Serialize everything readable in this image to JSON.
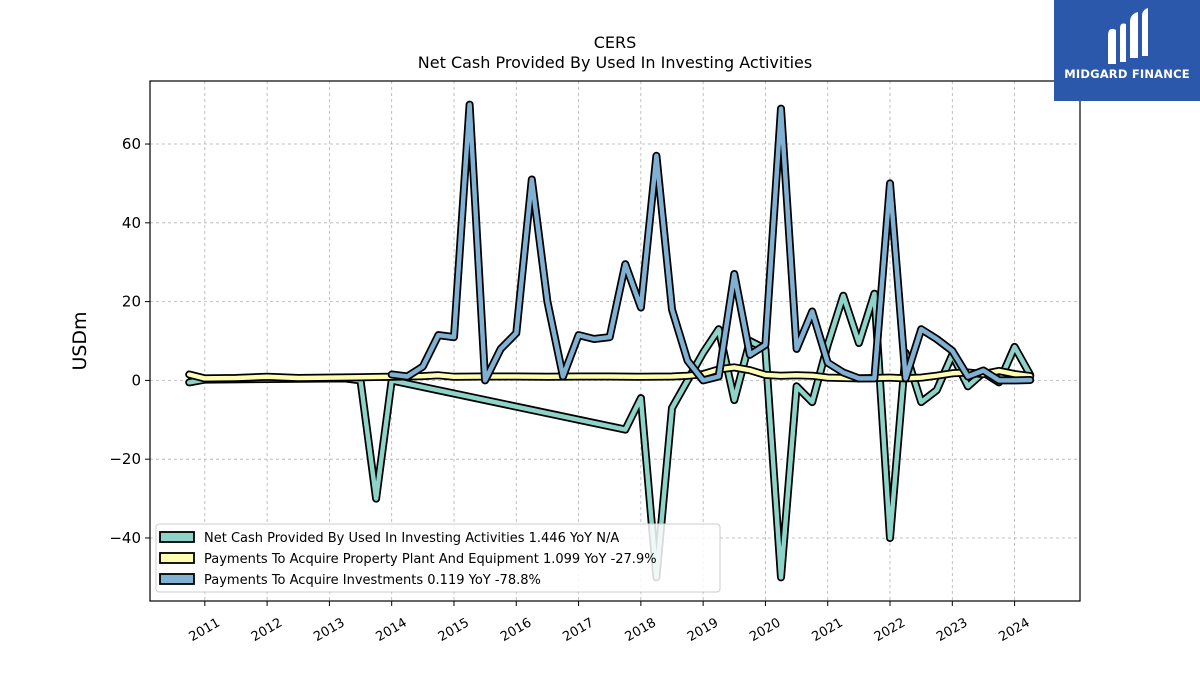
{
  "header": {
    "ticker": "CERS",
    "subtitle": "Net Cash Provided By Used In Investing Activities"
  },
  "brand": {
    "name": "MIDGARD FINANCE",
    "color": "#2b58ab"
  },
  "chart_data": {
    "type": "line",
    "title": "CERS",
    "subtitle": "Net Cash Provided By Used In Investing Activities",
    "xlabel": "",
    "ylabel": "USDm",
    "ylim": [
      -56,
      76
    ],
    "xlim": [
      2010.12,
      2025.05
    ],
    "yticks": [
      -40,
      -20,
      0,
      20,
      40,
      60
    ],
    "xticks": [
      2011,
      2012,
      2013,
      2014,
      2015,
      2016,
      2017,
      2018,
      2019,
      2020,
      2021,
      2022,
      2023,
      2024
    ],
    "grid": true,
    "legend_position": "lower-left",
    "series": [
      {
        "name": "Net Cash Provided By Used In Investing Activities",
        "legend": "Net Cash Provided By Used In Investing Activities  1.446 YoY N/A",
        "color": "#8dd3c7",
        "x": [
          2010.75,
          2011.0,
          2013.25,
          2013.5,
          2013.75,
          2014.0,
          2017.75,
          2018.0,
          2018.25,
          2018.5,
          2018.75,
          2019.0,
          2019.25,
          2019.5,
          2019.75,
          2020.0,
          2020.25,
          2020.5,
          2020.75,
          2021.0,
          2021.25,
          2021.5,
          2021.75,
          2022.0,
          2022.25,
          2022.5,
          2022.75,
          2023.0,
          2023.25,
          2023.5,
          2023.75,
          2024.0,
          2024.25
        ],
        "y": [
          -0.5,
          0.2,
          0.5,
          0,
          -30,
          0,
          -12.5,
          -4.5,
          -50,
          -7,
          0,
          7,
          13,
          -5,
          10,
          8,
          -50,
          -1.5,
          -5.5,
          9,
          21.5,
          9.5,
          22,
          -40,
          7,
          -5.5,
          -2.5,
          6.5,
          -1.5,
          2,
          -0.5,
          8.5,
          1.4
        ]
      },
      {
        "name": "Payments To Acquire Property Plant And Equipment",
        "legend": "Payments To Acquire Property Plant And Equipment  1.099 YoY -27.9%",
        "color": "#ffffb3",
        "x": [
          2010.75,
          2011.0,
          2011.5,
          2012.0,
          2012.5,
          2013.0,
          2013.5,
          2014.0,
          2014.5,
          2014.75,
          2015.0,
          2015.5,
          2016.0,
          2016.5,
          2017.0,
          2017.5,
          2018.0,
          2018.5,
          2018.75,
          2019.0,
          2019.25,
          2019.5,
          2019.75,
          2020.0,
          2020.25,
          2020.5,
          2020.75,
          2021.0,
          2021.5,
          2022.0,
          2022.25,
          2022.5,
          2022.75,
          2023.0,
          2023.25,
          2023.5,
          2023.75,
          2024.0,
          2024.25
        ],
        "y": [
          1.5,
          0.5,
          0.6,
          0.9,
          0.6,
          0.7,
          0.8,
          0.9,
          1.1,
          1.3,
          0.9,
          1.0,
          1.0,
          0.9,
          1.0,
          1.0,
          0.9,
          1.0,
          1.2,
          1.6,
          2.8,
          3.3,
          2.6,
          1.4,
          1.2,
          1.3,
          1.2,
          0.7,
          0.5,
          0.7,
          0.5,
          0.7,
          1.2,
          1.8,
          2.0,
          1.6,
          2.4,
          1.6,
          1.1
        ]
      },
      {
        "name": "Payments To Acquire Investments",
        "legend": "Payments To Acquire Investments  0.119 YoY -78.8%",
        "color": "#80b1d3",
        "x": [
          2014.0,
          2014.25,
          2014.5,
          2014.75,
          2015.0,
          2015.25,
          2015.5,
          2015.75,
          2016.0,
          2016.25,
          2016.5,
          2016.75,
          2017.0,
          2017.25,
          2017.5,
          2017.75,
          2018.0,
          2018.25,
          2018.5,
          2018.75,
          2019.0,
          2019.25,
          2019.5,
          2019.75,
          2020.0,
          2020.25,
          2020.5,
          2020.75,
          2021.0,
          2021.25,
          2021.5,
          2021.75,
          2022.0,
          2022.25,
          2022.5,
          2022.75,
          2023.0,
          2023.25,
          2023.5,
          2023.75,
          2024.0,
          2024.25
        ],
        "y": [
          1.5,
          1.0,
          3.5,
          11.5,
          11.0,
          70.0,
          0.0,
          8.0,
          12.0,
          51.0,
          20.0,
          1.0,
          11.5,
          10.5,
          11.0,
          29.5,
          18.5,
          57.0,
          18.0,
          5.0,
          0.0,
          1.0,
          27.0,
          6.5,
          9.0,
          69.0,
          8.0,
          17.5,
          4.5,
          2.0,
          0.5,
          0.5,
          50.0,
          0.5,
          13.0,
          10.5,
          7.5,
          1.0,
          2.5,
          0.0,
          0.0,
          0.1
        ]
      }
    ]
  }
}
